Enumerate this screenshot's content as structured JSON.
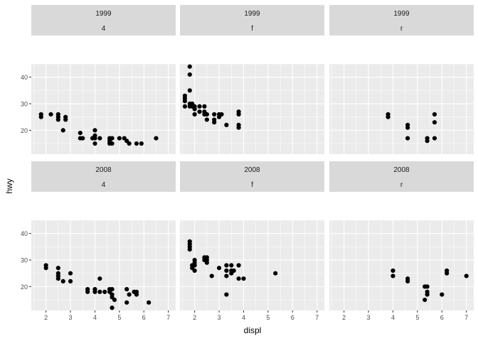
{
  "chart_data": {
    "type": "scatter",
    "xlabel": "displ",
    "ylabel": "hwy",
    "xlim": [
      1.4,
      7.3
    ],
    "ylim": [
      11,
      45
    ],
    "x_ticks": [
      2,
      3,
      4,
      5,
      6,
      7
    ],
    "y_ticks": [
      20,
      30,
      40
    ],
    "grid": true,
    "facets": [
      {
        "year": "1999",
        "drv": "4",
        "points": [
          [
            1.8,
            26
          ],
          [
            1.8,
            25
          ],
          [
            2.2,
            26
          ],
          [
            2.5,
            26
          ],
          [
            2.5,
            25
          ],
          [
            2.5,
            24
          ],
          [
            2.7,
            20
          ],
          [
            2.8,
            25
          ],
          [
            2.8,
            24
          ],
          [
            3.4,
            17
          ],
          [
            3.4,
            19
          ],
          [
            3.5,
            17
          ],
          [
            3.9,
            17
          ],
          [
            4.0,
            17
          ],
          [
            4.0,
            18
          ],
          [
            4.0,
            20
          ],
          [
            4.0,
            15
          ],
          [
            4.2,
            17
          ],
          [
            4.6,
            17
          ],
          [
            4.6,
            16
          ],
          [
            4.6,
            15
          ],
          [
            4.7,
            17
          ],
          [
            5.0,
            17
          ],
          [
            5.2,
            17
          ],
          [
            5.3,
            16
          ],
          [
            5.4,
            15
          ],
          [
            5.7,
            15
          ],
          [
            5.9,
            15
          ],
          [
            6.5,
            17
          ],
          [
            4.7,
            15
          ]
        ]
      },
      {
        "year": "1999",
        "drv": "f",
        "points": [
          [
            1.6,
            32
          ],
          [
            1.6,
            33
          ],
          [
            1.6,
            31
          ],
          [
            1.6,
            29
          ],
          [
            1.8,
            29
          ],
          [
            1.8,
            30
          ],
          [
            1.8,
            35
          ],
          [
            1.8,
            44
          ],
          [
            1.8,
            41
          ],
          [
            1.9,
            29
          ],
          [
            2.0,
            26
          ],
          [
            2.0,
            29
          ],
          [
            2.0,
            28
          ],
          [
            2.2,
            27
          ],
          [
            2.4,
            27
          ],
          [
            2.4,
            26
          ],
          [
            2.5,
            24
          ],
          [
            2.5,
            26
          ],
          [
            2.8,
            26
          ],
          [
            2.8,
            23
          ],
          [
            2.8,
            24
          ],
          [
            3.0,
            26
          ],
          [
            3.0,
            25
          ],
          [
            3.1,
            26
          ],
          [
            3.3,
            22
          ],
          [
            3.8,
            27
          ],
          [
            3.8,
            26
          ],
          [
            3.8,
            21
          ],
          [
            3.8,
            22
          ],
          [
            2.2,
            29
          ],
          [
            2.4,
            29
          ],
          [
            1.9,
            30
          ]
        ]
      },
      {
        "year": "1999",
        "drv": "r",
        "points": [
          [
            3.8,
            26
          ],
          [
            3.8,
            25
          ],
          [
            4.6,
            17
          ],
          [
            4.6,
            21
          ],
          [
            4.6,
            22
          ],
          [
            5.4,
            16
          ],
          [
            5.4,
            17
          ],
          [
            5.7,
            17
          ],
          [
            5.7,
            23
          ],
          [
            5.7,
            26
          ]
        ]
      },
      {
        "year": "2008",
        "drv": "4",
        "points": [
          [
            2.0,
            28
          ],
          [
            2.0,
            27
          ],
          [
            2.5,
            25
          ],
          [
            2.5,
            27
          ],
          [
            2.5,
            23
          ],
          [
            2.5,
            24
          ],
          [
            2.7,
            22
          ],
          [
            3.0,
            22
          ],
          [
            3.0,
            25
          ],
          [
            3.7,
            19
          ],
          [
            3.7,
            18
          ],
          [
            4.0,
            19
          ],
          [
            4.0,
            18
          ],
          [
            4.2,
            23
          ],
          [
            4.2,
            18
          ],
          [
            4.4,
            18
          ],
          [
            4.6,
            19
          ],
          [
            4.6,
            18
          ],
          [
            4.7,
            17
          ],
          [
            4.7,
            16
          ],
          [
            4.7,
            19
          ],
          [
            4.7,
            12
          ],
          [
            4.8,
            15
          ],
          [
            5.3,
            19
          ],
          [
            5.3,
            14
          ],
          [
            5.4,
            17
          ],
          [
            5.6,
            18
          ],
          [
            5.7,
            18
          ],
          [
            5.7,
            17
          ],
          [
            6.2,
            14
          ]
        ]
      },
      {
        "year": "2008",
        "drv": "f",
        "points": [
          [
            1.8,
            36
          ],
          [
            1.8,
            37
          ],
          [
            1.8,
            35
          ],
          [
            1.8,
            34
          ],
          [
            1.9,
            28
          ],
          [
            1.9,
            27
          ],
          [
            2.0,
            30
          ],
          [
            2.0,
            29
          ],
          [
            2.0,
            28
          ],
          [
            2.0,
            26
          ],
          [
            2.4,
            31
          ],
          [
            2.4,
            30
          ],
          [
            2.5,
            31
          ],
          [
            2.5,
            30
          ],
          [
            2.5,
            29
          ],
          [
            2.7,
            24
          ],
          [
            3.0,
            27
          ],
          [
            3.3,
            26
          ],
          [
            3.3,
            17
          ],
          [
            3.3,
            24
          ],
          [
            3.3,
            28
          ],
          [
            3.5,
            26
          ],
          [
            3.5,
            28
          ],
          [
            3.5,
            25
          ],
          [
            3.6,
            26
          ],
          [
            3.8,
            23
          ],
          [
            3.8,
            28
          ],
          [
            4.0,
            23
          ],
          [
            5.3,
            25
          ]
        ]
      },
      {
        "year": "2008",
        "drv": "r",
        "points": [
          [
            4.0,
            26
          ],
          [
            4.0,
            24
          ],
          [
            4.6,
            23
          ],
          [
            4.6,
            22
          ],
          [
            5.3,
            20
          ],
          [
            5.3,
            15
          ],
          [
            5.4,
            20
          ],
          [
            5.4,
            18
          ],
          [
            5.4,
            17
          ],
          [
            6.0,
            17
          ],
          [
            6.2,
            26
          ],
          [
            6.2,
            25
          ],
          [
            7.0,
            24
          ]
        ]
      }
    ]
  }
}
